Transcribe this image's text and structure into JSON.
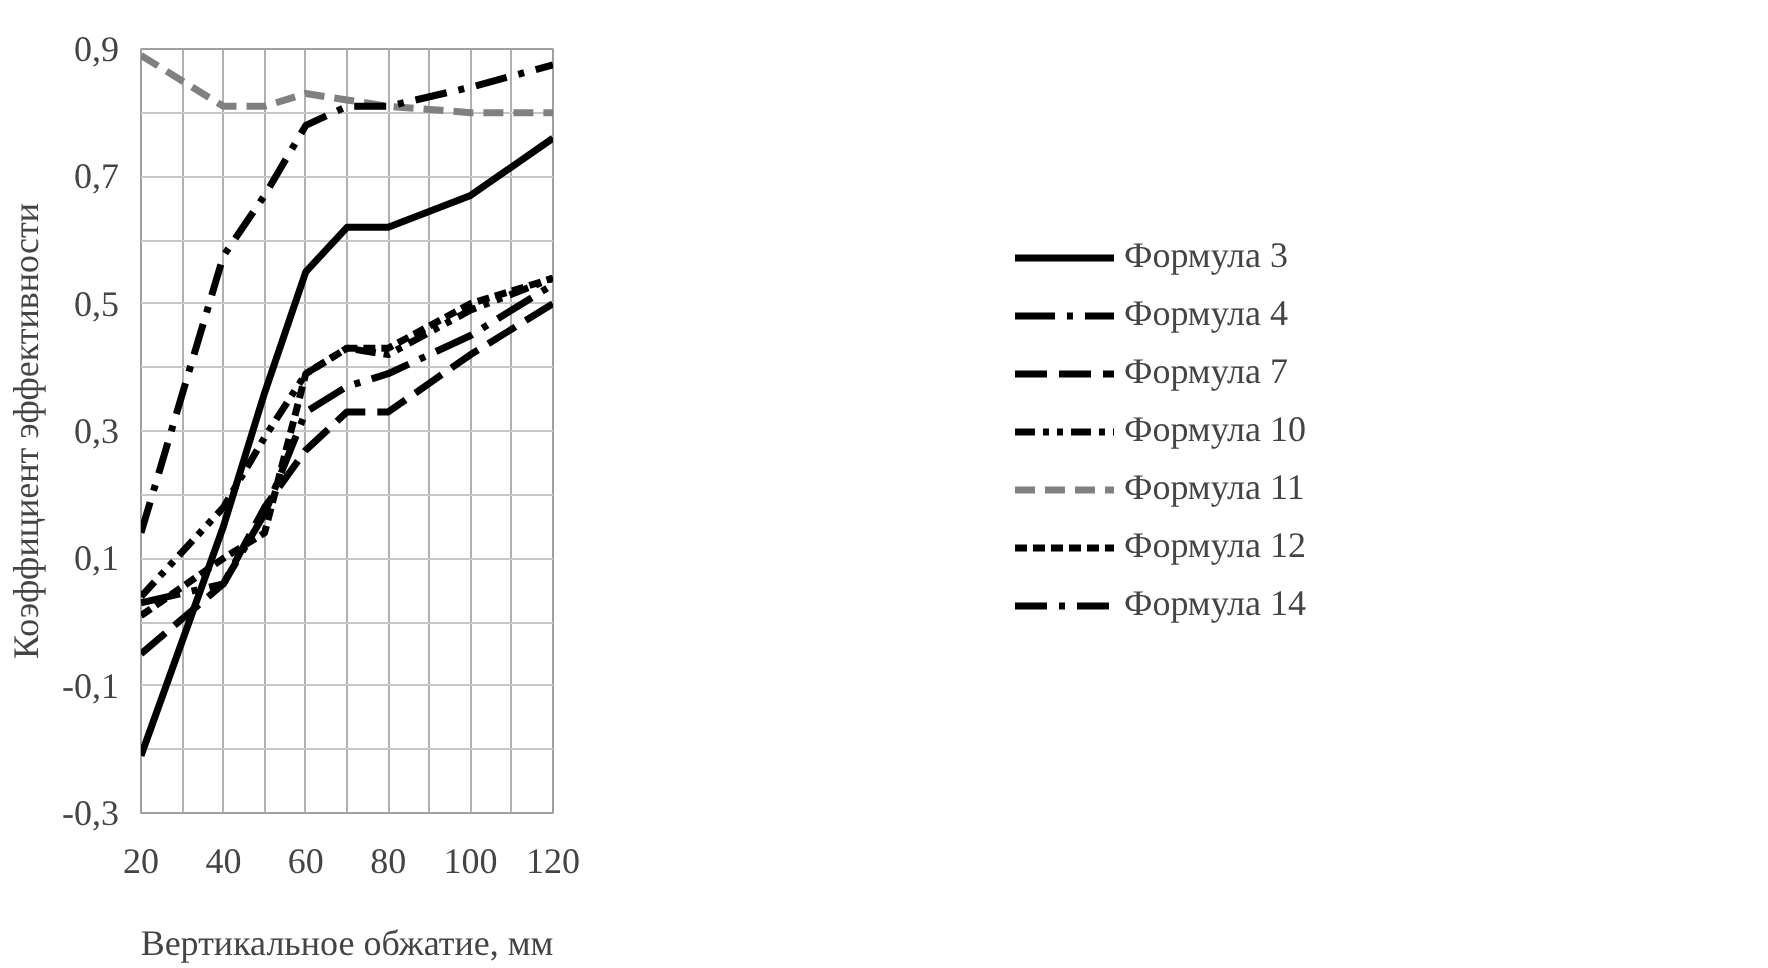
{
  "chart_data": {
    "type": "line",
    "xlabel": "Вертикальное обжатие, мм",
    "ylabel": "Коэффициент эффективности",
    "x": [
      20,
      40,
      50,
      60,
      70,
      80,
      100,
      120
    ],
    "series": [
      {
        "name": "Формула 3",
        "color": "#000000",
        "line_style": "solid",
        "values": [
          -0.21,
          0.15,
          0.36,
          0.55,
          0.62,
          0.62,
          0.67,
          0.76
        ]
      },
      {
        "name": "Формула 4",
        "color": "#000000",
        "line_style": "longdashdot",
        "values": [
          0.03,
          0.06,
          0.17,
          0.33,
          0.37,
          0.39,
          0.45,
          0.53
        ]
      },
      {
        "name": "Формула 7",
        "color": "#000000",
        "line_style": "longdash",
        "values": [
          -0.05,
          0.06,
          0.18,
          0.27,
          0.33,
          0.33,
          0.42,
          0.5
        ]
      },
      {
        "name": "Формула 10",
        "color": "#000000",
        "line_style": "dashdotdot",
        "values": [
          0.04,
          0.18,
          0.29,
          0.39,
          0.43,
          0.42,
          0.49,
          0.54
        ]
      },
      {
        "name": "Формула 11",
        "color": "#808080",
        "line_style": "dashed",
        "values": [
          0.89,
          0.81,
          0.81,
          0.83,
          0.82,
          0.81,
          0.8,
          0.8
        ]
      },
      {
        "name": "Формула 12",
        "color": "#000000",
        "line_style": "shortdash",
        "values": [
          0.01,
          0.1,
          0.14,
          0.39,
          0.43,
          0.43,
          0.5,
          0.54
        ]
      },
      {
        "name": "Формула 14",
        "color": "#000000",
        "line_style": "dashdot",
        "values": [
          0.14,
          0.575,
          0.67,
          0.78,
          0.81,
          0.81,
          0.84,
          0.875
        ]
      }
    ],
    "xlim": [
      20,
      120
    ],
    "ylim": [
      -0.3,
      0.9
    ],
    "xticks": [
      20,
      {
        "value": 30,
        "label": null
      },
      40,
      {
        "value": 50,
        "label": null
      },
      60,
      {
        "value": 70,
        "label": null
      },
      80,
      {
        "value": 90,
        "label": null
      },
      100,
      {
        "value": 110,
        "label": null
      },
      120
    ],
    "yticks": [
      {
        "value": -0.3,
        "label": "-0,3"
      },
      {
        "value": -0.2,
        "label": null
      },
      {
        "value": -0.1,
        "label": "-0,1"
      },
      {
        "value": 0,
        "label": null
      },
      {
        "value": 0.1,
        "label": "0,1"
      },
      {
        "value": 0.2,
        "label": null
      },
      {
        "value": 0.3,
        "label": "0,3"
      },
      {
        "value": 0.4,
        "label": null
      },
      {
        "value": 0.5,
        "label": "0,5"
      },
      {
        "value": 0.6,
        "label": null
      },
      {
        "value": 0.7,
        "label": "0,7"
      },
      {
        "value": 0.8,
        "label": null
      },
      {
        "value": 0.9,
        "label": "0,9"
      }
    ],
    "grid": true,
    "legend": "right",
    "marker": "none"
  }
}
